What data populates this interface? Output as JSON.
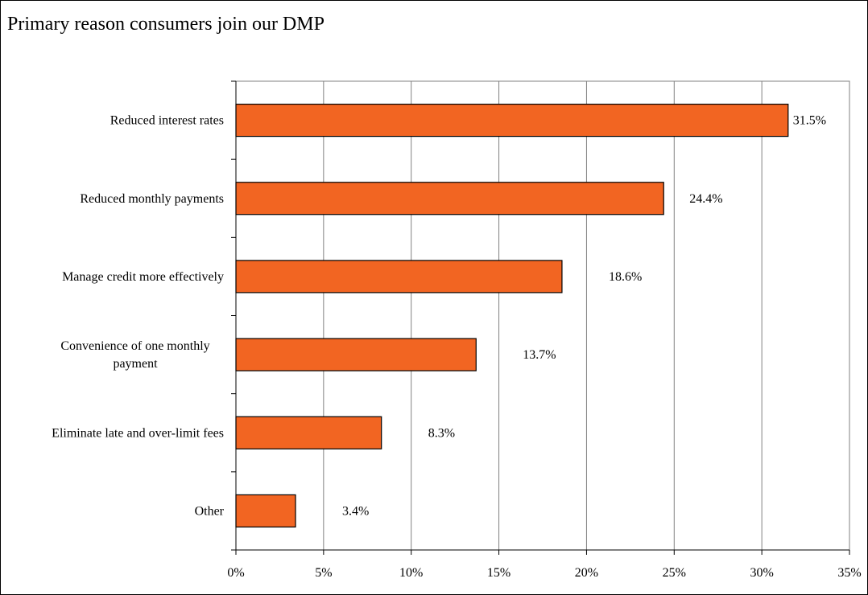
{
  "chart_data": {
    "type": "bar",
    "orientation": "horizontal",
    "title": "Primary reason consumers join our DMP",
    "categories": [
      [
        "Reduced interest rates"
      ],
      [
        "Reduced monthly payments"
      ],
      [
        "Manage credit more effectively"
      ],
      [
        "Convenience of one monthly",
        "payment"
      ],
      [
        "Eliminate late and over-limit fees"
      ],
      [
        "Other"
      ]
    ],
    "values": [
      31.5,
      24.4,
      18.6,
      13.7,
      8.3,
      3.4
    ],
    "data_labels": [
      "31.5%",
      "24.4%",
      "18.6%",
      "13.7%",
      "8.3%",
      "3.4%"
    ],
    "xlim": [
      0,
      35
    ],
    "x_ticks": [
      0,
      5,
      10,
      15,
      20,
      25,
      30,
      35
    ],
    "x_tick_labels": [
      "0%",
      "5%",
      "10%",
      "15%",
      "20%",
      "25%",
      "30%",
      "35%"
    ],
    "xlabel": "",
    "ylabel": "",
    "grid": true,
    "legend": "none",
    "colors": {
      "bar_fill": "#F26522",
      "bar_stroke": "#000000",
      "gridline": "#808080",
      "axis": "#000000"
    }
  }
}
